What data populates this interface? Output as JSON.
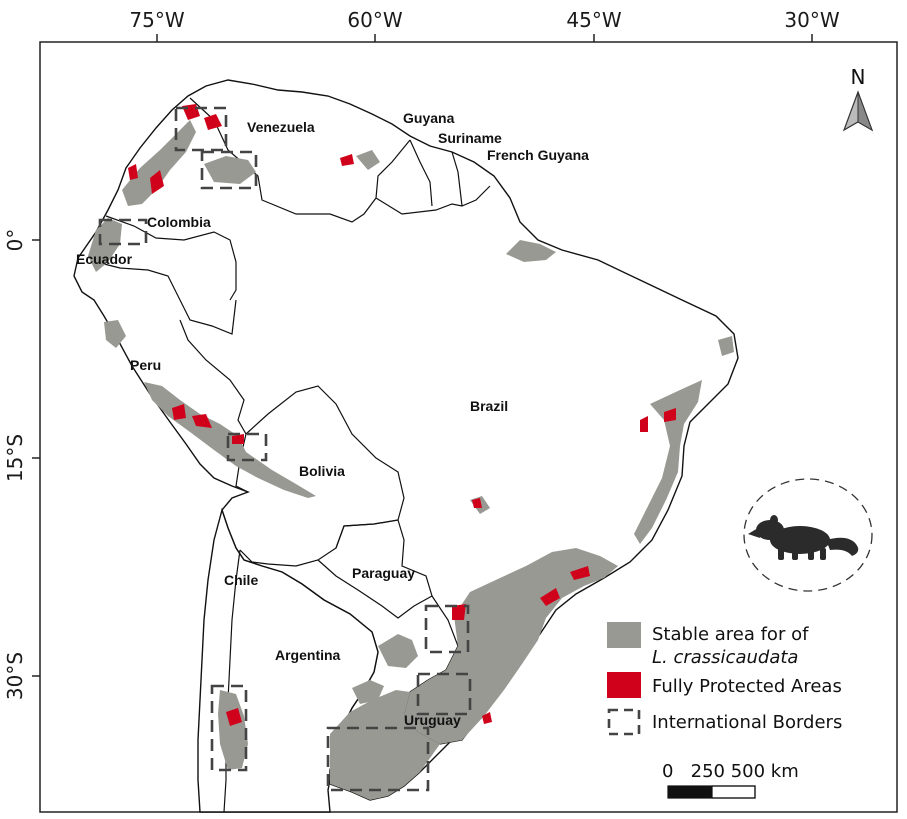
{
  "map": {
    "longitude_ticks": [
      "75°W",
      "60°W",
      "45°W",
      "30°W"
    ],
    "latitude_ticks": [
      "0°",
      "15°S",
      "30°S"
    ],
    "countries": [
      "Venezuela",
      "Guyana",
      "Suriname",
      "French Guyana",
      "Colombia",
      "Ecuador",
      "Peru",
      "Brazil",
      "Bolivia",
      "Chile",
      "Paraguay",
      "Argentina",
      "Uruguay"
    ],
    "north_label": "N",
    "legend": {
      "stable_area_line1": "Stable area for of",
      "stable_area_line2": "L. crassicaudata",
      "protected_areas": "Fully Protected Areas",
      "international_borders": "International Borders"
    },
    "scale": {
      "label": "0   250 500 km"
    },
    "colors": {
      "stable_area": "#999993",
      "protected_areas": "#d0021b",
      "borders": "#111111",
      "dashed_boxes": "#444444"
    }
  }
}
